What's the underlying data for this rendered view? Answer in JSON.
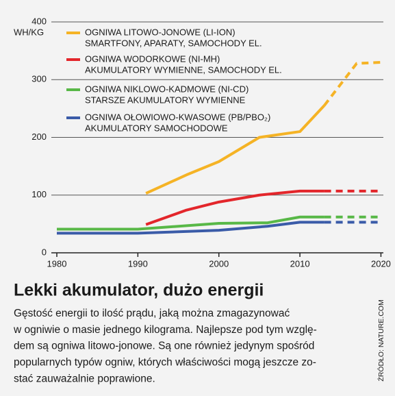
{
  "chart_data": {
    "type": "line",
    "y_label": "WH/KG",
    "xlim": [
      1980,
      2020.3
    ],
    "xticks": [
      1980,
      1990,
      2000,
      2010,
      2020
    ],
    "ylim": [
      0,
      400
    ],
    "yticks": [
      0,
      100,
      200,
      300,
      400
    ],
    "grid": true,
    "legend": "top-left",
    "series": [
      {
        "name": "OGNIWA LITOWO-JONOWE (LI-ION)",
        "description": "SMARTFONY, APARATY, SAMOCHODY EL.",
        "color": "#f5b325",
        "x": [
          1991,
          1996,
          2000,
          2005,
          2010,
          2013
        ],
        "values": [
          103,
          135,
          158,
          200,
          210,
          255
        ],
        "projection": {
          "x": [
            2013,
            2017,
            2020
          ],
          "values": [
            255,
            328,
            330
          ]
        }
      },
      {
        "name": "OGNIWA WODORKOWE (NI-MH)",
        "description": "AKUMULATORY WYMIENNE, SAMOCHODY EL.",
        "color": "#e3262b",
        "x": [
          1991,
          1996,
          2000,
          2005,
          2010,
          2013
        ],
        "values": [
          49,
          74,
          88,
          100,
          107,
          107
        ],
        "projection": {
          "x": [
            2013,
            2020
          ],
          "values": [
            107,
            107
          ]
        }
      },
      {
        "name": "OGNIWA NIKLOWO-KADMOWE (NI-CD)",
        "description": "STARSZE AKUMULATORY WYMIENNE",
        "color": "#58b847",
        "x": [
          1980,
          1990,
          2000,
          2006,
          2010,
          2013
        ],
        "values": [
          41,
          41,
          51,
          52,
          62,
          62
        ],
        "projection": {
          "x": [
            2013,
            2020
          ],
          "values": [
            62,
            62
          ]
        }
      },
      {
        "name": "OGNIWA OŁOWIOWO-KWASOWE (PB/PBO₂)",
        "description": "AKUMULATORY SAMOCHODOWE",
        "color": "#3a5ba8",
        "x": [
          1980,
          1990,
          2000,
          2006,
          2010,
          2013
        ],
        "values": [
          34,
          34,
          39,
          46,
          53,
          53
        ],
        "projection": {
          "x": [
            2013,
            2020
          ],
          "values": [
            53,
            53
          ]
        }
      }
    ]
  },
  "article": {
    "title": "Lekki akumulator, dużo energii",
    "body": [
      "Gęstość energii to ilość prądu, jaką można zmagazynować",
      "w ogniwie o masie jednego kilograma. Najlepsze pod tym wzglę-",
      "dem są ogniwa litowo-jonowe. Są one również jedynym spośród",
      "popularnych typów ogniw, których właściwości mogą jeszcze zo-",
      "stać zauważalnie poprawione."
    ],
    "source": "ŹRÓDŁO: NATURE.COM"
  }
}
